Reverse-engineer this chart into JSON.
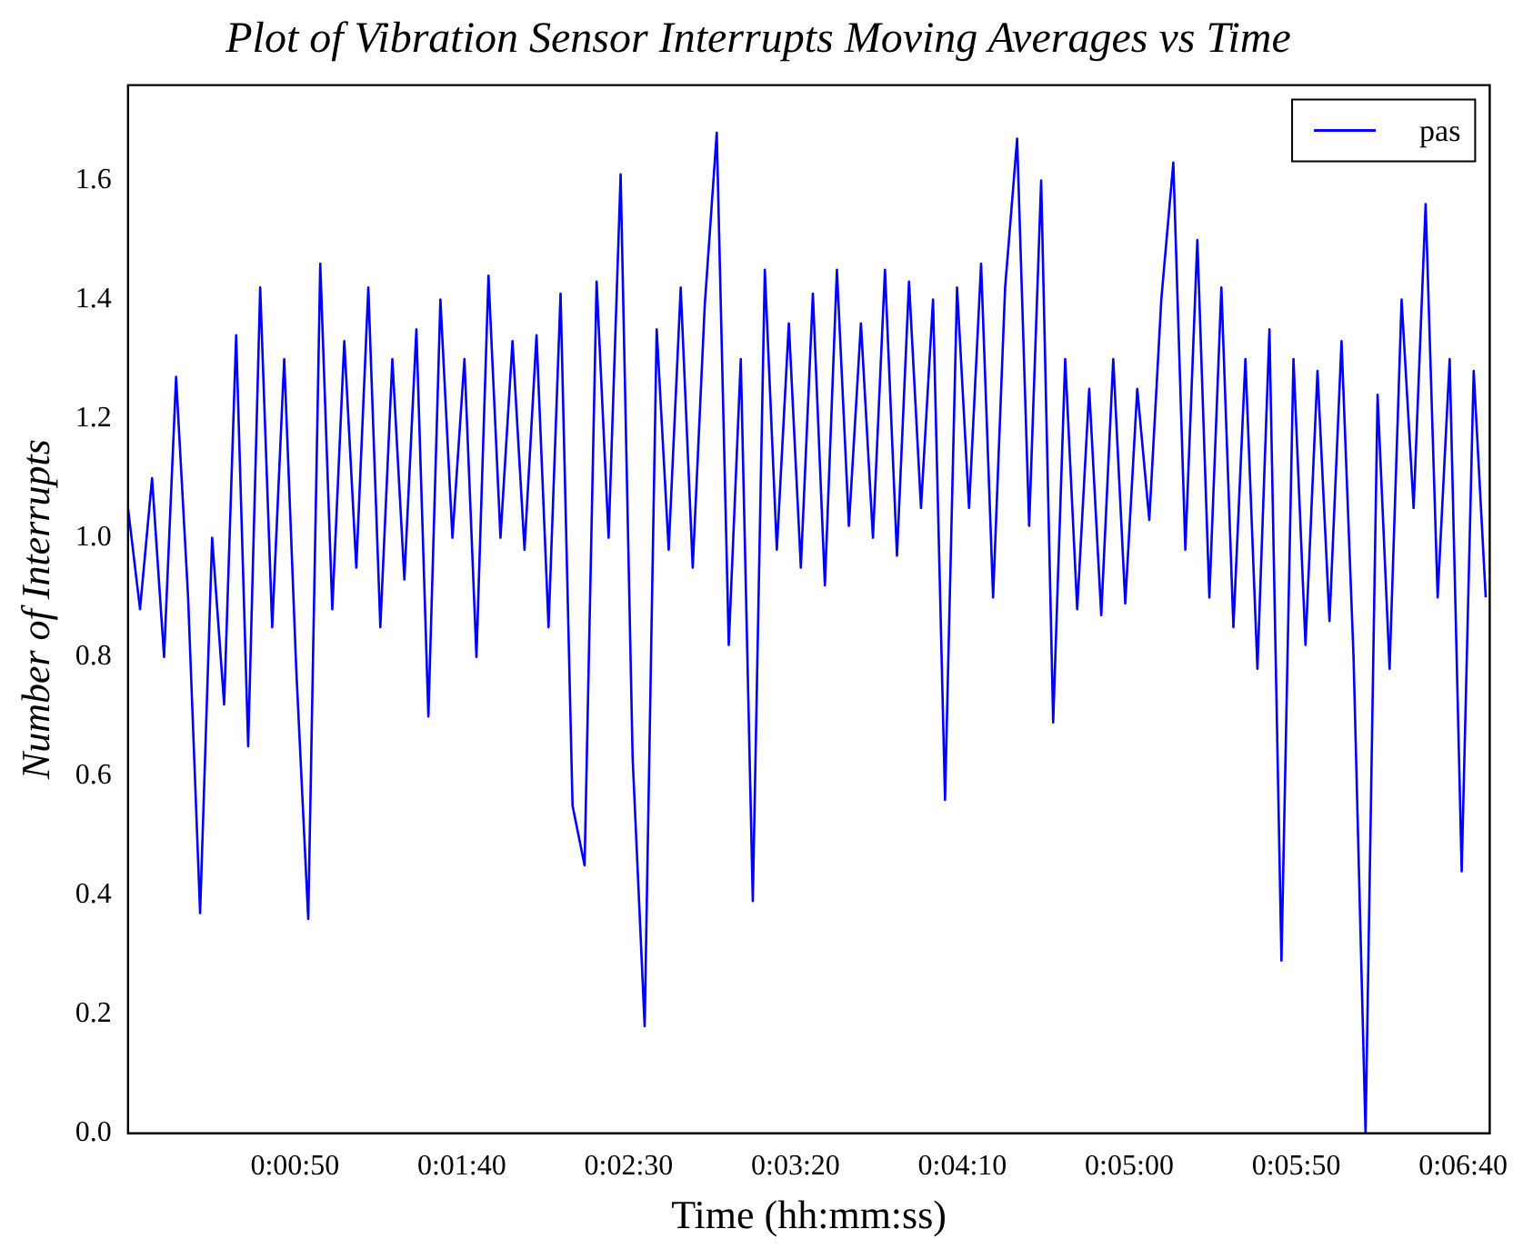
{
  "chart_data": {
    "type": "line",
    "title": "Plot of Vibration Sensor Interrupts Moving Averages vs Time",
    "xlabel": "Time (hh:mm:ss)",
    "ylabel": "Number of Interrupts",
    "x": [
      0,
      0.001,
      0.002,
      0.003,
      0.004,
      0.005,
      0.006,
      0.007,
      0.008,
      0.009,
      0.01,
      0.011,
      0.012,
      0.013,
      0.014,
      0.015,
      0.016,
      0.017,
      0.018,
      0.019,
      0.02,
      0.021,
      0.022,
      0.023,
      0.024,
      0.025,
      0.026,
      0.027,
      0.028,
      0.029,
      0.03,
      0.031,
      0.032,
      0.033,
      0.034,
      0.035,
      0.036,
      0.037,
      0.038,
      0.039,
      0.04,
      0.041,
      0.042,
      0.043,
      0.044,
      0.045,
      0.046,
      0.047,
      0.048,
      0.049,
      0.05,
      0.051,
      0.052,
      0.053,
      0.054,
      0.055,
      0.056,
      0.057,
      0.058,
      0.059,
      0.06,
      0.061,
      0.062,
      0.063,
      0.064,
      0.065,
      0.066,
      0.067,
      0.068,
      0.069,
      0.07,
      0.071,
      0.072,
      0.073,
      0.074,
      0.075,
      0.076,
      0.077,
      0.078,
      0.079,
      0.08,
      0.081,
      0.082,
      0.083,
      0.084,
      0.085,
      0.086,
      0.087,
      0.088,
      0.089,
      0.09,
      0.091,
      0.092,
      0.093,
      0.094,
      0.095,
      0.096,
      0.097,
      0.098,
      0.099,
      0.1,
      0.101,
      0.102,
      0.103,
      0.104,
      0.105,
      0.106,
      0.107,
      0.108,
      0.109,
      0.11,
      0.111,
      0.112,
      0.113
    ],
    "series": [
      {
        "name": "pas",
        "color": "#0000ff",
        "values": [
          1.05,
          0.88,
          1.1,
          0.8,
          1.27,
          0.9,
          0.37,
          1.0,
          0.72,
          1.34,
          0.65,
          1.42,
          0.85,
          1.3,
          0.78,
          0.36,
          1.46,
          0.88,
          1.33,
          0.95,
          1.42,
          0.85,
          1.3,
          0.93,
          1.35,
          0.7,
          1.4,
          1.0,
          1.3,
          0.8,
          1.44,
          1.0,
          1.33,
          0.98,
          1.34,
          0.85,
          1.41,
          0.55,
          0.45,
          1.43,
          1.0,
          1.61,
          0.63,
          0.18,
          1.35,
          0.98,
          1.42,
          0.95,
          1.39,
          1.68,
          0.82,
          1.3,
          0.39,
          1.45,
          0.98,
          1.36,
          0.95,
          1.41,
          0.92,
          1.45,
          1.02,
          1.36,
          1.0,
          1.45,
          0.97,
          1.43,
          1.05,
          1.4,
          0.56,
          1.42,
          1.05,
          1.46,
          0.9,
          1.42,
          1.67,
          1.02,
          1.6,
          0.69,
          1.3,
          0.88,
          1.25,
          0.87,
          1.3,
          0.89,
          1.25,
          1.03,
          1.4,
          1.63,
          0.98,
          1.5,
          0.9,
          1.42,
          0.85,
          1.3,
          0.78,
          1.35,
          0.29,
          1.3,
          0.82,
          1.28,
          0.86,
          1.33,
          0.8,
          0.0,
          1.24,
          0.78,
          1.4,
          1.05,
          1.56,
          0.9,
          1.3,
          0.44,
          1.28,
          0.9
        ]
      }
    ],
    "xlim": [
      0,
      0.1133333
    ],
    "xticks": [
      {
        "value": 0.0138889,
        "label": "0:00:50"
      },
      {
        "value": 0.0277778,
        "label": "0:01:40"
      },
      {
        "value": 0.0416667,
        "label": "0:02:30"
      },
      {
        "value": 0.0555556,
        "label": "0:03:20"
      },
      {
        "value": 0.0694444,
        "label": "0:04:10"
      },
      {
        "value": 0.0833333,
        "label": "0:05:00"
      },
      {
        "value": 0.0972222,
        "label": "0:05:50"
      },
      {
        "value": 0.1111111,
        "label": "0:06:40"
      }
    ],
    "ylim": [
      0,
      1.76
    ],
    "yticks": [
      {
        "value": 0,
        "label": "0.0"
      },
      0.2,
      0.4,
      0.6,
      0.8,
      {
        "value": 1,
        "label": "1.0"
      },
      1.2,
      1.4,
      1.6
    ],
    "legend": "top right",
    "grid": false
  }
}
